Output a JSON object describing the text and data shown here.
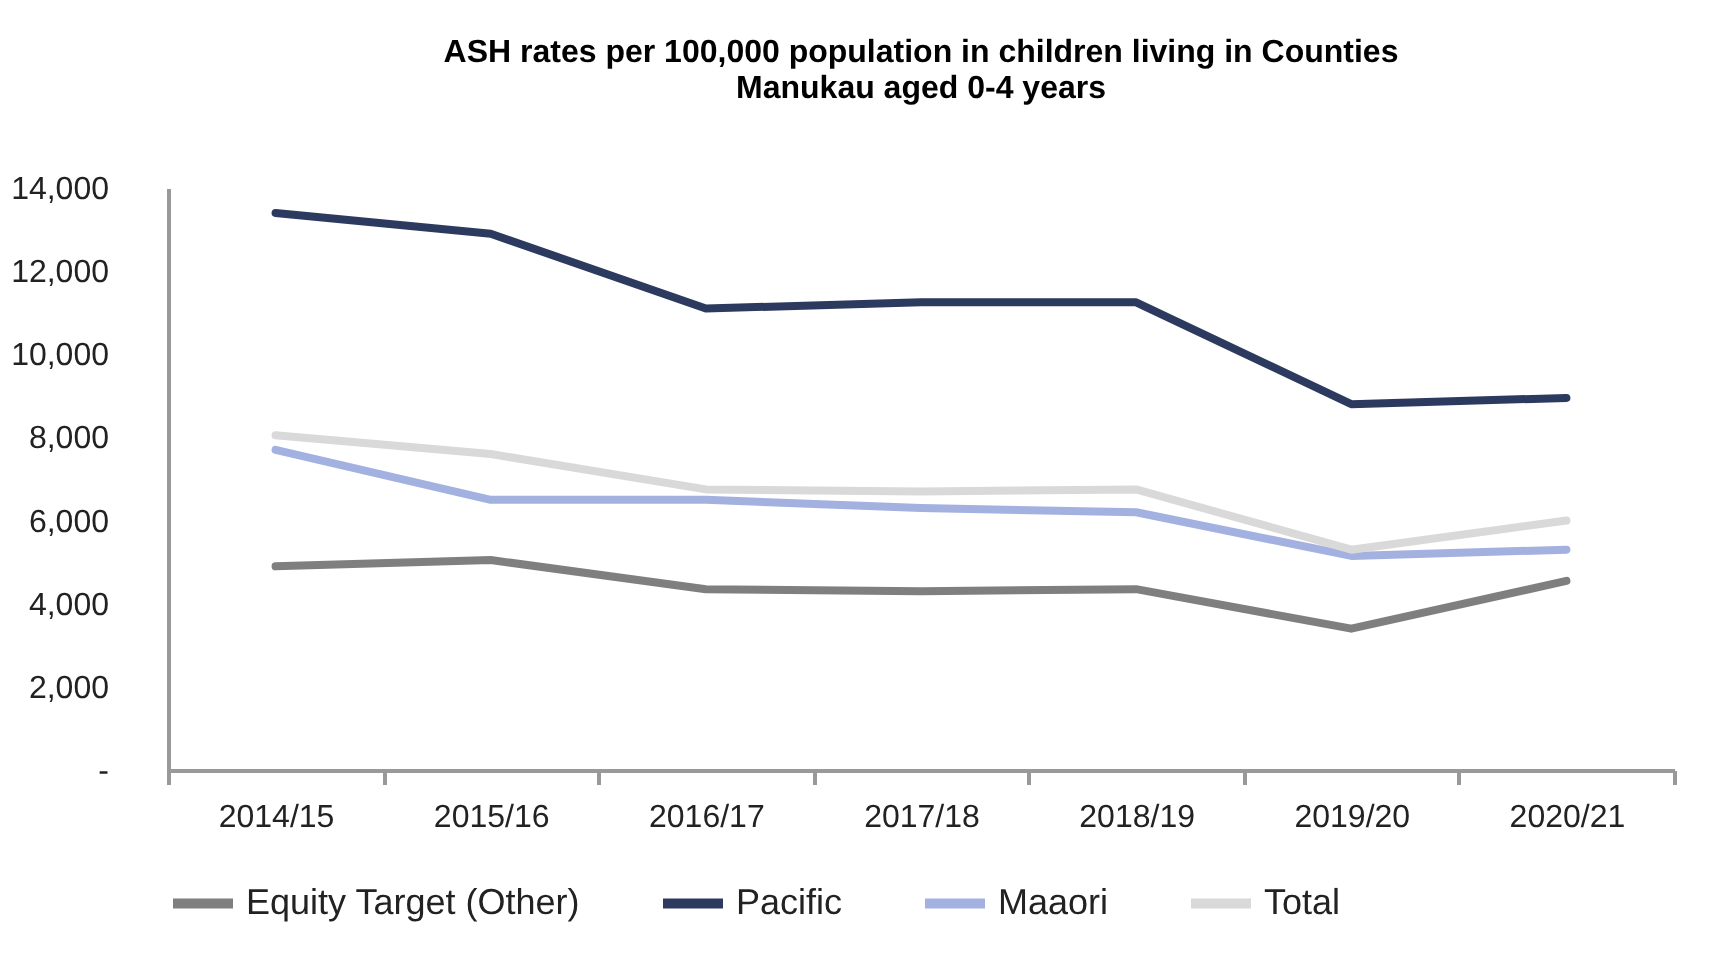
{
  "chart_data": {
    "type": "line",
    "title": [
      "ASH rates per 100,000 population in children living in Counties",
      "Manukau aged 0-4 years"
    ],
    "categories": [
      "2014/15",
      "2015/16",
      "2016/17",
      "2017/18",
      "2018/19",
      "2019/20",
      "2020/21"
    ],
    "series": [
      {
        "name": "Equity Target (Other)",
        "color": "#7f7f7f",
        "values": [
          4900,
          5050,
          4350,
          4300,
          4350,
          3400,
          4550
        ]
      },
      {
        "name": "Pacific",
        "color": "#2b3a5e",
        "values": [
          13400,
          12900,
          11100,
          11250,
          11250,
          8800,
          8950
        ]
      },
      {
        "name": "Maaori",
        "color": "#a2b1e0",
        "values": [
          7700,
          6500,
          6500,
          6300,
          6200,
          5150,
          5300
        ]
      },
      {
        "name": "Total",
        "color": "#d9d9d9",
        "values": [
          8050,
          7600,
          6750,
          6700,
          6750,
          5300,
          6000
        ]
      }
    ],
    "ylim": [
      0,
      14000
    ],
    "yticks": [
      {
        "value": 0,
        "label": "-"
      },
      {
        "value": 2000,
        "label": "2,000"
      },
      {
        "value": 4000,
        "label": "4,000"
      },
      {
        "value": 6000,
        "label": "6,000"
      },
      {
        "value": 8000,
        "label": "8,000"
      },
      {
        "value": 10000,
        "label": "10,000"
      },
      {
        "value": 12000,
        "label": "12,000"
      },
      {
        "value": 14000,
        "label": "14,000"
      }
    ],
    "grid": false,
    "legend": "bottom",
    "marker": "none",
    "line_style": "solid"
  }
}
